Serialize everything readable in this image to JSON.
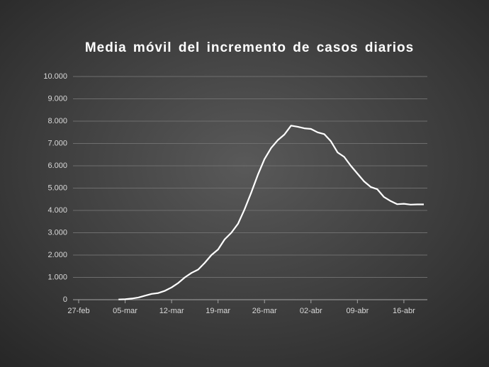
{
  "chart_data": {
    "type": "line",
    "title": "Media móvil del incremento de casos diarios",
    "categories": [
      "27-feb",
      null,
      null,
      null,
      null,
      null,
      null,
      "05-mar",
      null,
      null,
      null,
      null,
      null,
      null,
      "12-mar",
      null,
      null,
      null,
      null,
      null,
      null,
      "19-mar",
      null,
      null,
      null,
      null,
      null,
      null,
      "26-mar",
      null,
      null,
      null,
      null,
      null,
      null,
      "02-abr",
      null,
      null,
      null,
      null,
      null,
      null,
      "09-abr",
      null,
      null,
      null,
      null,
      null,
      null,
      "16-abr",
      null,
      null,
      null
    ],
    "series": [
      {
        "color": "#ffffff",
        "values": [
          null,
          null,
          null,
          null,
          null,
          null,
          10,
          20,
          50,
          100,
          180,
          260,
          300,
          400,
          550,
          750,
          1000,
          1200,
          1350,
          1650,
          2000,
          2250,
          2700,
          3000,
          3400,
          4050,
          4800,
          5600,
          6300,
          6800,
          7150,
          7400,
          7800,
          7750,
          7680,
          7650,
          7500,
          7420,
          7100,
          6600,
          6400,
          6000,
          5650,
          5300,
          5050,
          4950,
          4600,
          4420,
          4280,
          4300,
          4260,
          4270,
          4270
        ]
      }
    ],
    "ylim": [
      0,
      10000
    ],
    "yticks": [
      0,
      {
        "value": 1000,
        "label": "1.000"
      },
      {
        "value": 2000,
        "label": "2.000"
      },
      {
        "value": 3000,
        "label": "3.000"
      },
      {
        "value": 4000,
        "label": "4.000"
      },
      {
        "value": 5000,
        "label": "5.000"
      },
      {
        "value": 6000,
        "label": "6.000"
      },
      {
        "value": 7000,
        "label": "7.000"
      },
      {
        "value": 8000,
        "label": "8.000"
      },
      {
        "value": 9000,
        "label": "9.000"
      },
      {
        "value": 10000,
        "label": "10.000"
      }
    ],
    "grid": true
  }
}
